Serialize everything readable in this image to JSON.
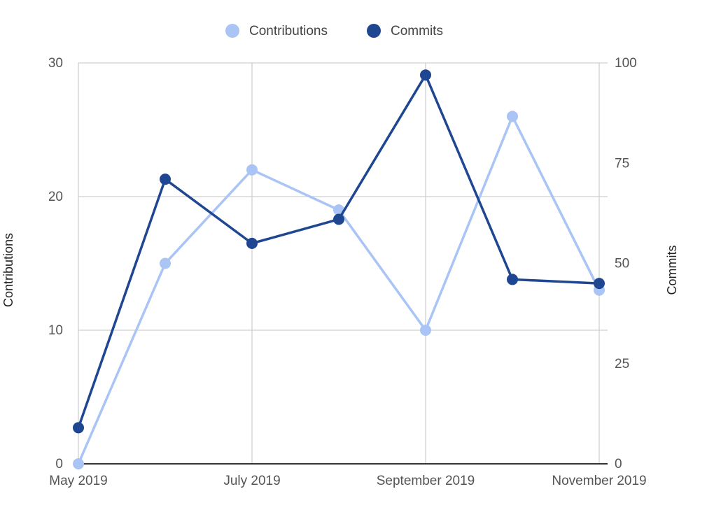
{
  "chart_data": {
    "type": "line",
    "x": [
      "May 2019",
      "Jun 2019",
      "Jul 2019",
      "Aug 2019",
      "Sep 2019",
      "Oct 2019",
      "Nov 2019"
    ],
    "x_tick_labels": [
      "May 2019",
      "July 2019",
      "September 2019",
      "November 2019"
    ],
    "series": [
      {
        "name": "Contributions",
        "axis": "left",
        "color": "#a9c4f5",
        "values": [
          0,
          15,
          22,
          19,
          10,
          26,
          13
        ]
      },
      {
        "name": "Commits",
        "axis": "right",
        "color": "#1f4690",
        "values": [
          9,
          71,
          55,
          61,
          97,
          46,
          45
        ]
      }
    ],
    "ylabel": "Contributions",
    "y2label": "Commits",
    "ylim": [
      0,
      30
    ],
    "y2lim": [
      0,
      100
    ],
    "yticks": [
      0,
      10,
      20,
      30
    ],
    "y2ticks": [
      0,
      25,
      50,
      75,
      100
    ],
    "grid": true,
    "legend_position": "top"
  }
}
